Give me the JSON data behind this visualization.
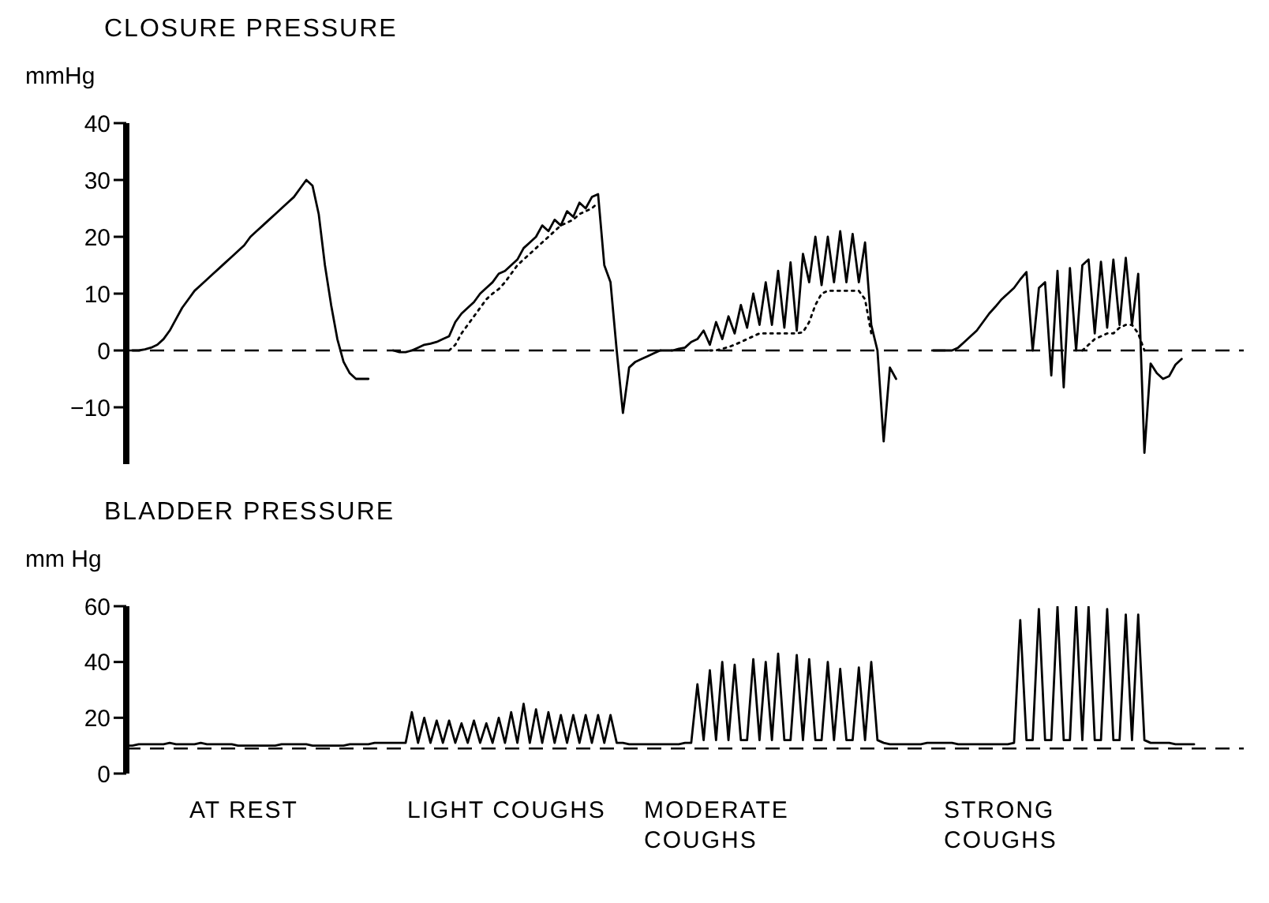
{
  "chart_data": [
    {
      "type": "line",
      "title": "CLOSURE PRESSURE",
      "ylabel": "mmHg",
      "tick_labels": "y",
      "ylim": [
        -20,
        40
      ],
      "yticks": [
        -10,
        0,
        10,
        20,
        30,
        40
      ],
      "ref_lines": [
        {
          "axis": "y",
          "value": 0,
          "line_style": "dashed",
          "color": "#000000"
        }
      ],
      "categories": [
        null,
        null,
        null,
        null,
        null,
        null,
        null,
        null,
        null,
        null,
        null,
        null,
        null,
        null,
        null,
        null,
        null,
        null,
        null,
        null,
        null,
        null,
        null,
        null,
        null,
        null,
        null,
        null,
        null,
        null,
        null,
        null,
        null,
        null,
        null,
        null,
        null,
        null,
        null,
        null,
        null,
        null,
        null,
        null,
        null,
        null,
        null,
        null,
        null,
        null,
        null,
        null,
        null,
        null,
        null,
        null,
        null,
        null,
        null,
        null,
        null,
        null,
        null,
        null,
        null,
        null,
        null,
        null,
        null,
        null,
        null,
        null,
        null,
        null,
        null,
        null,
        null,
        null,
        null,
        null,
        null,
        null,
        null,
        null,
        null,
        null,
        null,
        null,
        null,
        null,
        null,
        null,
        null,
        null,
        null,
        null,
        null,
        null,
        null,
        null,
        null,
        null,
        null,
        null,
        null,
        null,
        null,
        null,
        null,
        null,
        null,
        null,
        null,
        null,
        null,
        null,
        null,
        null,
        null,
        null,
        null,
        null,
        null,
        null,
        null,
        null,
        null,
        null,
        null,
        null,
        null,
        null,
        null,
        null,
        null,
        null,
        null,
        null,
        null,
        null,
        null,
        null,
        null,
        null,
        null,
        null,
        null,
        null,
        null,
        null,
        null,
        null,
        null,
        null,
        null,
        null,
        null,
        null,
        null,
        null,
        null,
        null,
        null,
        null,
        null,
        null,
        null,
        null,
        null,
        null,
        null,
        null,
        null,
        null,
        null,
        null,
        null,
        null,
        null,
        null,
        null
      ],
      "series": [
        {
          "color": "#000000",
          "line_style": "solid",
          "values": [
            null,
            0,
            0,
            0.2,
            0.5,
            1,
            2,
            3.5,
            5.5,
            7.5,
            9,
            10.5,
            11.5,
            12.5,
            13.5,
            14.5,
            15.5,
            16.5,
            17.5,
            18.5,
            20,
            21,
            22,
            23,
            24,
            25,
            26,
            27,
            28.5,
            30,
            29,
            24,
            15,
            8,
            2,
            -2,
            -4,
            -5,
            -5,
            -5,
            null,
            null,
            null,
            0,
            -0.3,
            -0.3,
            0,
            0.5,
            1,
            1.2,
            1.5,
            2,
            2.5,
            5,
            6.5,
            7.5,
            8.5,
            10,
            11,
            12,
            13.5,
            14,
            15,
            16,
            18,
            19,
            20,
            22,
            21,
            23,
            22,
            24.5,
            23.5,
            26,
            25,
            27,
            27.5,
            15,
            12,
            0,
            -11,
            -3,
            -2,
            -1.5,
            -1,
            -0.5,
            0,
            0,
            0,
            0.3,
            0.5,
            1.5,
            2,
            3.5,
            1,
            5,
            2,
            6,
            3,
            8,
            4,
            10,
            4.5,
            12,
            4.5,
            14,
            4,
            15.5,
            3.5,
            17,
            12,
            20,
            11.5,
            20,
            12,
            21,
            12,
            20.5,
            12,
            19,
            4.5,
            0,
            -16,
            -3,
            -5,
            null,
            null,
            null,
            null,
            null,
            0,
            0,
            0,
            0,
            0.5,
            1.5,
            2.5,
            3.5,
            5,
            6.5,
            7.7,
            9,
            10,
            11,
            12.5,
            13.8,
            0,
            11,
            12,
            -4.4,
            14,
            -6.5,
            14.5,
            0,
            15,
            16,
            3,
            15.6,
            4,
            16,
            4.5,
            16.3,
            4.5,
            13.5,
            -18,
            -2.3,
            -4,
            -5,
            -4.5,
            -2.5,
            -1.5,
            null,
            null,
            null,
            null,
            null,
            null,
            null,
            null,
            null,
            null
          ]
        },
        {
          "color": "#000000",
          "line_style": "dotted",
          "values": [
            null,
            null,
            null,
            null,
            null,
            null,
            null,
            null,
            null,
            null,
            null,
            null,
            null,
            null,
            null,
            null,
            null,
            null,
            null,
            null,
            null,
            null,
            null,
            null,
            null,
            null,
            null,
            null,
            null,
            null,
            null,
            null,
            null,
            null,
            null,
            null,
            null,
            null,
            null,
            null,
            null,
            null,
            null,
            null,
            null,
            null,
            null,
            null,
            null,
            null,
            null,
            null,
            0,
            1,
            3,
            4.5,
            6,
            7.5,
            9,
            10,
            10.8,
            12,
            13.5,
            15,
            16,
            17,
            18,
            19,
            20,
            21,
            22,
            22.5,
            23,
            24,
            24.5,
            25,
            26,
            null,
            null,
            null,
            null,
            null,
            null,
            null,
            null,
            null,
            null,
            null,
            null,
            null,
            null,
            null,
            null,
            null,
            0,
            0,
            0.3,
            0.6,
            1,
            1.5,
            2,
            2.5,
            3,
            3,
            3,
            3,
            3,
            3,
            3,
            3.2,
            5,
            8,
            10,
            10.5,
            10.5,
            10.5,
            10.5,
            10.5,
            10.5,
            9,
            3,
            null,
            null,
            null,
            null,
            null,
            null,
            null,
            null,
            null,
            null,
            null,
            null,
            null,
            null,
            null,
            null,
            null,
            null,
            null,
            null,
            null,
            null,
            null,
            null,
            null,
            null,
            null,
            null,
            null,
            null,
            null,
            null,
            null,
            0,
            1,
            2,
            2.5,
            3,
            3,
            4,
            4.5,
            4.5,
            3,
            0,
            null,
            null,
            null,
            null,
            null,
            null,
            null,
            null,
            null,
            null,
            null,
            null,
            null,
            null,
            null,
            null
          ]
        }
      ]
    },
    {
      "type": "line",
      "title": "BLADDER PRESSURE",
      "ylabel": "mm Hg",
      "tick_labels": "y",
      "ylim": [
        0,
        60
      ],
      "yticks": [
        0,
        20,
        40,
        60
      ],
      "ref_lines": [
        {
          "axis": "y",
          "value": 9,
          "line_style": "dashed",
          "color": "#000000"
        }
      ],
      "annotations": [
        "AT REST",
        "LIGHT COUGHS",
        "MODERATE COUGHS",
        "STRONG COUGHS"
      ],
      "categories": [
        null,
        null,
        null,
        null,
        null,
        null,
        null,
        null,
        null,
        null,
        null,
        null,
        null,
        null,
        null,
        null,
        null,
        null,
        null,
        null,
        null,
        null,
        null,
        null,
        null,
        null,
        null,
        null,
        null,
        null,
        null,
        null,
        null,
        null,
        null,
        null,
        null,
        null,
        null,
        null,
        null,
        null,
        null,
        null,
        null,
        null,
        null,
        null,
        null,
        null,
        null,
        null,
        null,
        null,
        null,
        null,
        null,
        null,
        null,
        null,
        null,
        null,
        null,
        null,
        null,
        null,
        null,
        null,
        null,
        null,
        null,
        null,
        null,
        null,
        null,
        null,
        null,
        null,
        null,
        null,
        null,
        null,
        null,
        null,
        null,
        null,
        null,
        null,
        null,
        null,
        null,
        null,
        null,
        null,
        null,
        null,
        null,
        null,
        null,
        null,
        null,
        null,
        null,
        null,
        null,
        null,
        null,
        null,
        null,
        null,
        null,
        null,
        null,
        null,
        null,
        null,
        null,
        null,
        null,
        null,
        null,
        null,
        null,
        null,
        null,
        null,
        null,
        null,
        null,
        null,
        null,
        null,
        null,
        null,
        null,
        null,
        null,
        null,
        null,
        null,
        null,
        null,
        null,
        null,
        null,
        null,
        null,
        null,
        null,
        null,
        null,
        null,
        null,
        null,
        null,
        null,
        null,
        null,
        null,
        null,
        null,
        null,
        null,
        null,
        null,
        null,
        null,
        null,
        null,
        null,
        null,
        null,
        null,
        null,
        null,
        null,
        null,
        null,
        null,
        null,
        null
      ],
      "series": [
        {
          "color": "#000000",
          "line_style": "solid",
          "values": [
            10,
            10,
            10.5,
            10.5,
            10.5,
            10.5,
            10.5,
            11,
            10.5,
            10.5,
            10.5,
            10.5,
            11,
            10.5,
            10.5,
            10.5,
            10.5,
            10.5,
            10,
            10,
            10,
            10,
            10,
            10,
            10,
            10.5,
            10.5,
            10.5,
            10.5,
            10.5,
            10,
            10,
            10,
            10,
            10,
            10,
            10.5,
            10.5,
            10.5,
            10.5,
            11,
            11,
            11,
            11,
            11,
            11,
            22,
            11,
            20,
            11,
            19,
            11,
            19,
            11,
            18,
            11,
            19,
            11,
            18,
            11,
            20,
            11,
            22,
            11,
            25,
            11,
            23,
            11,
            22,
            11,
            21,
            11,
            21,
            11,
            21,
            11,
            21,
            11,
            21,
            11,
            11,
            10.5,
            10.5,
            10.5,
            10.5,
            10.5,
            10.5,
            10.5,
            10.5,
            10.5,
            11,
            11,
            32,
            12,
            37,
            12,
            40,
            12,
            39,
            12,
            12,
            41,
            12,
            40,
            12,
            43,
            12,
            12,
            42.5,
            12,
            41,
            12,
            12,
            40,
            12,
            37.5,
            12,
            12,
            38,
            12,
            40,
            12,
            11,
            10.5,
            10.5,
            10.5,
            10.5,
            10.5,
            10.5,
            11,
            11,
            11,
            11,
            11,
            10.5,
            10.5,
            10.5,
            10.5,
            10.5,
            10.5,
            10.5,
            10.5,
            10.5,
            11,
            55,
            12,
            12,
            59,
            12,
            12,
            60,
            12,
            12,
            60,
            12,
            60,
            12,
            12,
            59,
            12,
            12,
            57,
            12,
            57,
            12,
            11,
            11,
            11,
            11,
            10.5,
            10.5,
            10.5,
            10.5,
            null,
            null,
            null,
            null,
            null,
            null,
            null,
            null
          ]
        }
      ]
    }
  ]
}
